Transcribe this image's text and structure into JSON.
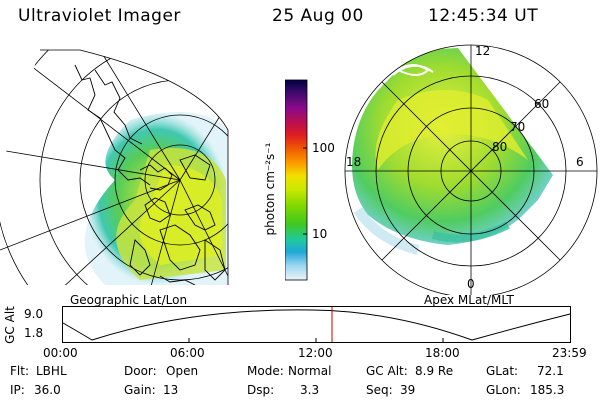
{
  "header": {
    "instrument": "Ultraviolet Imager",
    "date": "25 Aug 00",
    "time": "12:45:34 UT"
  },
  "colorbar": {
    "unit_label": "photon cm⁻²s⁻¹",
    "tick_high": "100",
    "tick_low": "10",
    "colors": [
      "#000040",
      "#3a0a6a",
      "#8a0a8a",
      "#c0104a",
      "#e02020",
      "#f06000",
      "#ffa000",
      "#f0e000",
      "#c8e800",
      "#80d800",
      "#40c820",
      "#20c8a0",
      "#20a8d8",
      "#a0d8f0",
      "#e8f4f8"
    ]
  },
  "left_map": {
    "caption": "Geographic Lat/Lon"
  },
  "right_map": {
    "caption": "Apex MLat/MLT",
    "mlt_labels": [
      "12",
      "18",
      "6",
      "0"
    ],
    "lat_labels": [
      "60",
      "70",
      "80"
    ]
  },
  "altitude_plot": {
    "ylabel": "GC Alt",
    "y_ticks": [
      "9.0",
      "1.8"
    ],
    "x_ticks": [
      "00:00",
      "06:00",
      "12:00",
      "18:00",
      "23:59"
    ],
    "marker_color": "#cc0000"
  },
  "info": {
    "flt_label": "Flt:",
    "flt_value": "LBHL",
    "door_label": "Door:",
    "door_value": "Open",
    "mode_label": "Mode:",
    "mode_value": "Normal",
    "gcalt_label": "GC Alt:",
    "gcalt_value": "8.9 Re",
    "glat_label": "GLat:",
    "glat_value": "72.1",
    "ip_label": "IP:",
    "ip_value": "36.0",
    "gain_label": "Gain:",
    "gain_value": "13",
    "dsp_label": "Dsp:",
    "dsp_value": "3.3",
    "seq_label": "Seq:",
    "seq_value": "39",
    "glon_label": "GLon:",
    "glon_value": "185.3"
  }
}
